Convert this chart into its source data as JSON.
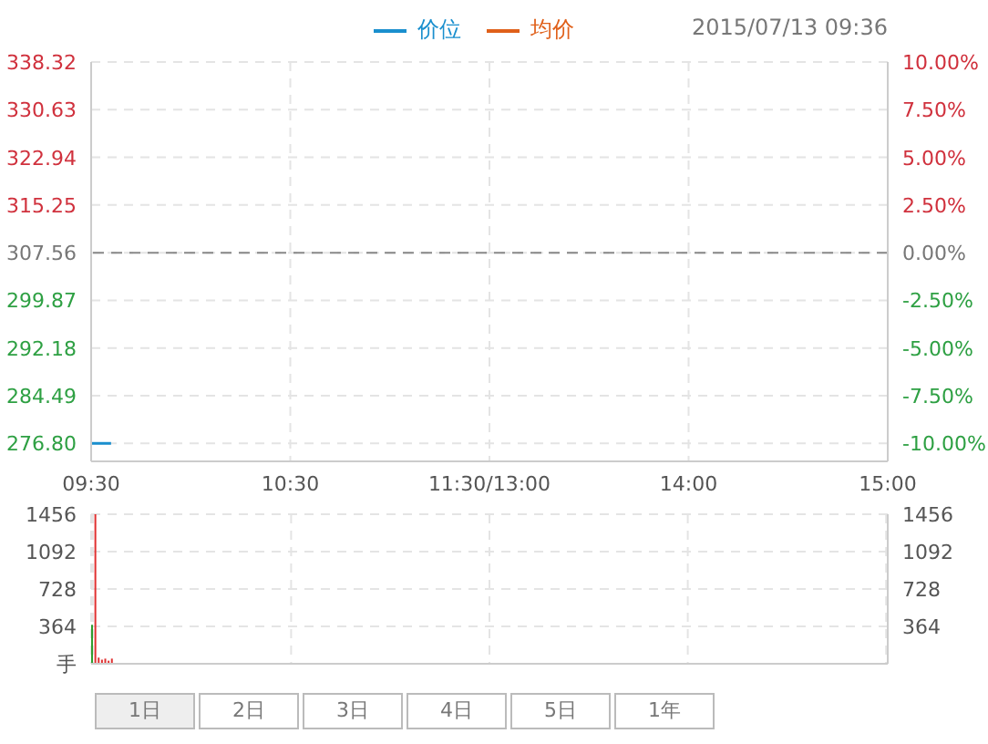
{
  "chart_data": [
    {
      "type": "line",
      "subtitle": "2015/07/13 09:36",
      "categories": [
        "09:30",
        null,
        null,
        null,
        null,
        null,
        null,
        null,
        null,
        null,
        null,
        null,
        null,
        null,
        null,
        null,
        null,
        null,
        null,
        null,
        null,
        null,
        null,
        null,
        null,
        null,
        null,
        null,
        null,
        null,
        null,
        null,
        null,
        null,
        null,
        null,
        null,
        null,
        null,
        null,
        null,
        null,
        null,
        null,
        null,
        null,
        null,
        null,
        null,
        null,
        null,
        null,
        null,
        null,
        null,
        null,
        null,
        null,
        null,
        null,
        "10:30",
        null,
        null,
        null,
        null,
        null,
        null,
        null,
        null,
        null,
        null,
        null,
        null,
        null,
        null,
        null,
        null,
        null,
        null,
        null,
        null,
        null,
        null,
        null,
        null,
        null,
        null,
        null,
        null,
        null,
        null,
        null,
        null,
        null,
        null,
        null,
        null,
        null,
        null,
        null,
        null,
        null,
        null,
        null,
        null,
        null,
        null,
        null,
        null,
        null,
        null,
        null,
        null,
        null,
        null,
        null,
        null,
        null,
        null,
        null,
        "11:30/13:00",
        null,
        null,
        null,
        null,
        null,
        null,
        null,
        null,
        null,
        null,
        null,
        null,
        null,
        null,
        null,
        null,
        null,
        null,
        null,
        null,
        null,
        null,
        null,
        null,
        null,
        null,
        null,
        null,
        null,
        null,
        null,
        null,
        null,
        null,
        null,
        null,
        null,
        null,
        null,
        null,
        null,
        null,
        null,
        null,
        null,
        null,
        null,
        null,
        null,
        null,
        null,
        null,
        null,
        null,
        null,
        null,
        null,
        null,
        null,
        "14:00",
        null,
        null,
        null,
        null,
        null,
        null,
        null,
        null,
        null,
        null,
        null,
        null,
        null,
        null,
        null,
        null,
        null,
        null,
        null,
        null,
        null,
        null,
        null,
        null,
        null,
        null,
        null,
        null,
        null,
        null,
        null,
        null,
        null,
        null,
        null,
        null,
        null,
        null,
        null,
        null,
        null,
        null,
        null,
        null,
        null,
        null,
        null,
        null,
        null,
        null,
        null,
        null,
        null,
        null,
        null,
        null,
        null,
        null,
        null,
        "15:00"
      ],
      "series": [
        {
          "name": "价位",
          "color": "#1a8fce",
          "values": [
            276.8,
            276.8,
            276.8,
            276.8,
            276.8,
            276.8,
            276.8,
            null,
            null,
            null,
            null,
            null,
            null,
            null,
            null,
            null,
            null,
            null,
            null,
            null,
            null,
            null,
            null,
            null,
            null,
            null,
            null,
            null,
            null,
            null,
            null,
            null,
            null,
            null,
            null,
            null,
            null,
            null,
            null,
            null,
            null,
            null,
            null,
            null,
            null,
            null,
            null,
            null,
            null,
            null,
            null,
            null,
            null,
            null,
            null,
            null,
            null,
            null,
            null,
            null,
            null,
            null,
            null,
            null,
            null,
            null,
            null,
            null,
            null,
            null,
            null,
            null,
            null,
            null,
            null,
            null,
            null,
            null,
            null,
            null,
            null,
            null,
            null,
            null,
            null,
            null,
            null,
            null,
            null,
            null,
            null,
            null,
            null,
            null,
            null,
            null,
            null,
            null,
            null,
            null,
            null,
            null,
            null,
            null,
            null,
            null,
            null,
            null,
            null,
            null,
            null,
            null,
            null,
            null,
            null,
            null,
            null,
            null,
            null,
            null,
            null,
            null,
            null,
            null,
            null,
            null,
            null,
            null,
            null,
            null,
            null,
            null,
            null,
            null,
            null,
            null,
            null,
            null,
            null,
            null,
            null,
            null,
            null,
            null,
            null,
            null,
            null,
            null,
            null,
            null,
            null,
            null,
            null,
            null,
            null,
            null,
            null,
            null,
            null,
            null,
            null,
            null,
            null,
            null,
            null,
            null,
            null,
            null,
            null,
            null,
            null,
            null,
            null,
            null,
            null,
            null,
            null,
            null,
            null,
            null,
            null,
            null,
            null,
            null,
            null,
            null,
            null,
            null,
            null,
            null,
            null,
            null,
            null,
            null,
            null,
            null,
            null,
            null,
            null,
            null,
            null,
            null,
            null,
            null,
            null,
            null,
            null,
            null,
            null,
            null,
            null,
            null,
            null,
            null,
            null,
            null,
            null,
            null,
            null,
            null,
            null,
            null,
            null,
            null,
            null,
            null,
            null,
            null,
            null,
            null,
            null,
            null,
            null,
            null,
            null,
            null,
            null,
            null,
            null,
            null,
            null
          ]
        },
        {
          "name": "均价",
          "color": "#e0601a",
          "values": [
            null,
            null,
            null,
            null,
            null,
            null,
            null,
            null,
            null,
            null,
            null,
            null,
            null,
            null,
            null,
            null,
            null,
            null,
            null,
            null,
            null,
            null,
            null,
            null,
            null,
            null,
            null,
            null,
            null,
            null,
            null,
            null,
            null,
            null,
            null,
            null,
            null,
            null,
            null,
            null,
            null,
            null,
            null,
            null,
            null,
            null,
            null,
            null,
            null,
            null,
            null,
            null,
            null,
            null,
            null,
            null,
            null,
            null,
            null,
            null,
            null,
            null,
            null,
            null,
            null,
            null,
            null,
            null,
            null,
            null,
            null,
            null,
            null,
            null,
            null,
            null,
            null,
            null,
            null,
            null,
            null,
            null,
            null,
            null,
            null,
            null,
            null,
            null,
            null,
            null,
            null,
            null,
            null,
            null,
            null,
            null,
            null,
            null,
            null,
            null,
            null,
            null,
            null,
            null,
            null,
            null,
            null,
            null,
            null,
            null,
            null,
            null,
            null,
            null,
            null,
            null,
            null,
            null,
            null,
            null,
            null,
            null,
            null,
            null,
            null,
            null,
            null,
            null,
            null,
            null,
            null,
            null,
            null,
            null,
            null,
            null,
            null,
            null,
            null,
            null,
            null,
            null,
            null,
            null,
            null,
            null,
            null,
            null,
            null,
            null,
            null,
            null,
            null,
            null,
            null,
            null,
            null,
            null,
            null,
            null,
            null,
            null,
            null,
            null,
            null,
            null,
            null,
            null,
            null,
            null,
            null,
            null,
            null,
            null,
            null,
            null,
            null,
            null,
            null,
            null,
            null,
            null,
            null,
            null,
            null,
            null,
            null,
            null,
            null,
            null,
            null,
            null,
            null,
            null,
            null,
            null,
            null,
            null,
            null,
            null,
            null,
            null,
            null,
            null,
            null,
            null,
            null,
            null,
            null,
            null,
            null,
            null,
            null,
            null,
            null,
            null,
            null,
            null,
            null,
            null,
            null,
            null,
            null,
            null,
            null,
            null,
            null,
            null,
            null,
            null,
            null,
            null,
            null,
            null,
            null,
            null,
            null,
            null,
            null,
            null,
            null
          ]
        }
      ],
      "ylim": [
        273.9,
        338.32
      ],
      "yticks": [
        {
          "value": 276.8,
          "label": "276.80"
        },
        284.49,
        292.18,
        299.87,
        307.56,
        315.25,
        322.94,
        330.63,
        338.32
      ],
      "y2lim": [
        -10.94,
        10
      ],
      "y2ticks": [
        {
          "value": -10,
          "label": "-10.00%"
        },
        {
          "value": -7.5,
          "label": "-7.50%"
        },
        {
          "value": -5,
          "label": "-5.00%"
        },
        {
          "value": -2.5,
          "label": "-2.50%"
        },
        {
          "value": 0,
          "label": "0.00%"
        },
        {
          "value": 2.5,
          "label": "2.50%"
        },
        {
          "value": 5,
          "label": "5.00%"
        },
        {
          "value": 7.5,
          "label": "7.50%"
        },
        {
          "value": 10,
          "label": "10.00%"
        }
      ],
      "ref_lines": [
        {
          "axis": "y2",
          "value": 0,
          "color": "#888888",
          "line_style": "dashed"
        }
      ],
      "grid": true,
      "legend": "top",
      "marker": "none"
    },
    {
      "type": "bar",
      "categories": [
        null,
        null,
        null,
        null,
        null,
        null,
        null,
        null,
        null,
        null,
        null,
        null,
        null,
        null,
        null,
        null,
        null,
        null,
        null,
        null,
        null,
        null,
        null,
        null,
        null,
        null,
        null,
        null,
        null,
        null,
        null,
        null,
        null,
        null,
        null,
        null,
        null,
        null,
        null,
        null,
        null,
        null,
        null,
        null,
        null,
        null,
        null,
        null,
        null,
        null,
        null,
        null,
        null,
        null,
        null,
        null,
        null,
        null,
        null,
        null,
        null,
        null,
        null,
        null,
        null,
        null,
        null,
        null,
        null,
        null,
        null,
        null,
        null,
        null,
        null,
        null,
        null,
        null,
        null,
        null,
        null,
        null,
        null,
        null,
        null,
        null,
        null,
        null,
        null,
        null,
        null,
        null,
        null,
        null,
        null,
        null,
        null,
        null,
        null,
        null,
        null,
        null,
        null,
        null,
        null,
        null,
        null,
        null,
        null,
        null,
        null,
        null,
        null,
        null,
        null,
        null,
        null,
        null,
        null,
        null,
        null,
        null,
        null,
        null,
        null,
        null,
        null,
        null,
        null,
        null,
        null,
        null,
        null,
        null,
        null,
        null,
        null,
        null,
        null,
        null,
        null,
        null,
        null,
        null,
        null,
        null,
        null,
        null,
        null,
        null,
        null,
        null,
        null,
        null,
        null,
        null,
        null,
        null,
        null,
        null,
        null,
        null,
        null,
        null,
        null,
        null,
        null,
        null,
        null,
        null,
        null,
        null,
        null,
        null,
        null,
        null,
        null,
        null,
        null,
        null,
        null,
        null,
        null,
        null,
        null,
        null,
        null,
        null,
        null,
        null,
        null,
        null,
        null,
        null,
        null,
        null,
        null,
        null,
        null,
        null,
        null,
        null,
        null,
        null,
        null,
        null,
        null,
        null,
        null,
        null,
        null,
        null,
        null,
        null,
        null,
        null,
        null,
        null,
        null,
        null,
        null,
        null,
        null,
        null,
        null,
        null,
        null,
        null,
        null,
        null,
        null,
        null,
        null,
        null,
        null,
        null,
        null,
        null,
        null,
        null,
        null
      ],
      "values": [
        380,
        1456,
        60,
        40,
        50,
        30,
        50,
        null,
        null,
        null,
        null,
        null,
        null,
        null,
        null,
        null,
        null,
        null,
        null,
        null,
        null,
        null,
        null,
        null,
        null,
        null,
        null,
        null,
        null,
        null,
        null,
        null,
        null,
        null,
        null,
        null,
        null,
        null,
        null,
        null,
        null,
        null,
        null,
        null,
        null,
        null,
        null,
        null,
        null,
        null,
        null,
        null,
        null,
        null,
        null,
        null,
        null,
        null,
        null,
        null,
        null,
        null,
        null,
        null,
        null,
        null,
        null,
        null,
        null,
        null,
        null,
        null,
        null,
        null,
        null,
        null,
        null,
        null,
        null,
        null,
        null,
        null,
        null,
        null,
        null,
        null,
        null,
        null,
        null,
        null,
        null,
        null,
        null,
        null,
        null,
        null,
        null,
        null,
        null,
        null,
        null,
        null,
        null,
        null,
        null,
        null,
        null,
        null,
        null,
        null,
        null,
        null,
        null,
        null,
        null,
        null,
        null,
        null,
        null,
        null,
        null,
        null,
        null,
        null,
        null,
        null,
        null,
        null,
        null,
        null,
        null,
        null,
        null,
        null,
        null,
        null,
        null,
        null,
        null,
        null,
        null,
        null,
        null,
        null,
        null,
        null,
        null,
        null,
        null,
        null,
        null,
        null,
        null,
        null,
        null,
        null,
        null,
        null,
        null,
        null,
        null,
        null,
        null,
        null,
        null,
        null,
        null,
        null,
        null,
        null,
        null,
        null,
        null,
        null,
        null,
        null,
        null,
        null,
        null,
        null,
        null,
        null,
        null,
        null,
        null,
        null,
        null,
        null,
        null,
        null,
        null,
        null,
        null,
        null,
        null,
        null,
        null,
        null,
        null,
        null,
        null,
        null,
        null,
        null,
        null,
        null,
        null,
        null,
        null,
        null,
        null,
        null,
        null,
        null,
        null,
        null,
        null,
        null,
        null,
        null,
        null,
        null,
        null,
        null,
        null,
        null,
        null,
        null,
        null,
        null,
        null,
        null,
        null,
        null,
        null,
        null,
        null,
        null,
        null,
        null,
        null
      ],
      "colors": [
        "#2e9e2e",
        "#e03030",
        "#e03030",
        "#e03030",
        "#e03030",
        "#e03030",
        "#e03030",
        null,
        null,
        null,
        null,
        null,
        null,
        null,
        null,
        null,
        null,
        null,
        null,
        null,
        null,
        null,
        null,
        null,
        null,
        null,
        null,
        null,
        null,
        null,
        null,
        null,
        null,
        null,
        null,
        null,
        null,
        null,
        null,
        null,
        null,
        null,
        null,
        null,
        null,
        null,
        null,
        null,
        null,
        null,
        null,
        null,
        null,
        null,
        null,
        null,
        null,
        null,
        null,
        null,
        null,
        null,
        null,
        null,
        null,
        null,
        null,
        null,
        null,
        null,
        null,
        null,
        null,
        null,
        null,
        null,
        null,
        null,
        null,
        null,
        null,
        null,
        null,
        null,
        null,
        null,
        null,
        null,
        null,
        null,
        null,
        null,
        null,
        null,
        null,
        null,
        null,
        null,
        null,
        null,
        null,
        null,
        null,
        null,
        null,
        null,
        null,
        null,
        null,
        null,
        null,
        null,
        null,
        null,
        null,
        null,
        null,
        null,
        null,
        null,
        null,
        null,
        null,
        null,
        null,
        null,
        null,
        null,
        null,
        null,
        null,
        null,
        null,
        null,
        null,
        null,
        null,
        null,
        null,
        null,
        null,
        null,
        null,
        null,
        null,
        null,
        null,
        null,
        null,
        null,
        null,
        null,
        null,
        null,
        null,
        null,
        null,
        null,
        null,
        null,
        null,
        null,
        null,
        null,
        null,
        null,
        null,
        null,
        null,
        null,
        null,
        null,
        null,
        null,
        null,
        null,
        null,
        null,
        null,
        null,
        null,
        null,
        null,
        null,
        null,
        null,
        null,
        null,
        null,
        null,
        null,
        null,
        null,
        null,
        null,
        null,
        null,
        null,
        null,
        null,
        null,
        null,
        null,
        null,
        null,
        null,
        null,
        null,
        null,
        null,
        null,
        null,
        null,
        null,
        null,
        null,
        null,
        null,
        null,
        null,
        null,
        null,
        null,
        null,
        null,
        null,
        null,
        null,
        null,
        null,
        null,
        null,
        null,
        null,
        null,
        null,
        null,
        null,
        null,
        null,
        null
      ],
      "ylim": [
        0,
        1456
      ],
      "yticks": [
        {
          "value": 0,
          "label": "手"
        },
        364,
        728,
        1092,
        1456
      ],
      "y2lim": [
        0,
        1456
      ],
      "y2ticks": [
        364,
        728,
        1092,
        1456
      ],
      "grid": true,
      "annotations": [
        "1日",
        "2日",
        "3日",
        "4日",
        "5日",
        "1年"
      ]
    }
  ]
}
